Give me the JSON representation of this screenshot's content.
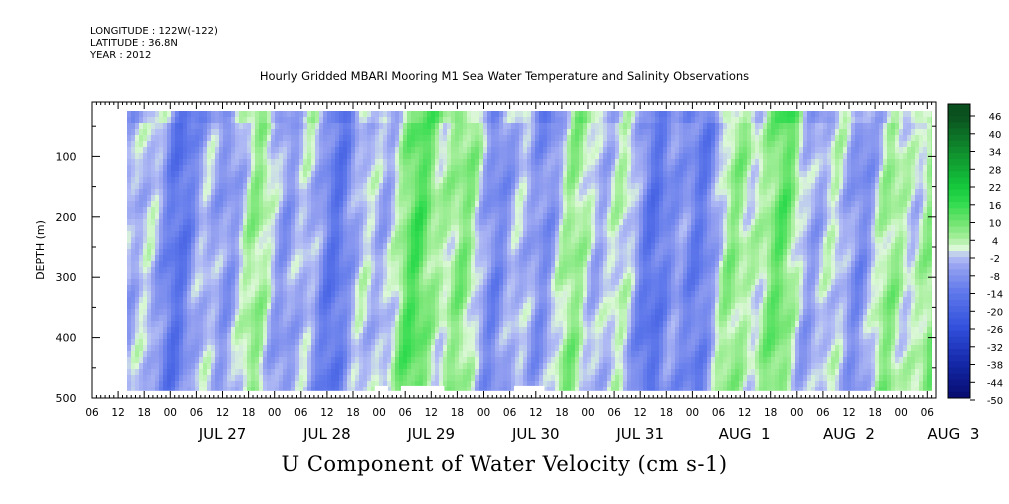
{
  "header": {
    "longitude": "LONGITUDE : 122W(-122)",
    "latitude": "LATITUDE : 36.8N",
    "year": "YEAR : 2012",
    "title": "Hourly Gridded MBARI Mooring M1 Sea Water Temperature and Salinity Observations"
  },
  "footer": {
    "variable": "U Component of Water Velocity (cm s-1)"
  },
  "colors": {
    "negative_strong": "#0a1a8c",
    "negative_mid": "#3355e0",
    "negative_weak": "#9aa8ee",
    "neutral": "#ffffff",
    "positive_weak": "#b4f0a8",
    "positive_mid": "#1ee14a",
    "positive_strong": "#0b5a20"
  },
  "chart_data": {
    "type": "heatmap",
    "title": "Hourly Gridded MBARI Mooring M1 Sea Water Temperature and Salinity Observations",
    "xlabel": "",
    "ylabel": "DEPTH (m)",
    "units": "cm s-1",
    "ylim": [
      500,
      10
    ],
    "y_inverted": true,
    "y_ticks": [
      100,
      200,
      300,
      400,
      500
    ],
    "x_range": [
      "2012-07-26T06:00",
      "2012-08-03T08:00"
    ],
    "data_range": [
      "2012-07-26T14:00",
      "2012-08-03T07:00"
    ],
    "x_hour_labels": [
      "06",
      "12",
      "18",
      "00",
      "06",
      "12",
      "18",
      "00",
      "06",
      "12",
      "18",
      "00",
      "06",
      "12",
      "18",
      "00",
      "06",
      "12",
      "18",
      "00",
      "06",
      "12",
      "18",
      "00",
      "06",
      "12",
      "18",
      "00",
      "06",
      "12",
      "18",
      "00",
      "06"
    ],
    "x_day_labels": [
      {
        "label": "JUL 27",
        "date": "2012-07-27"
      },
      {
        "label": "JUL 28",
        "date": "2012-07-28"
      },
      {
        "label": "JUL 29",
        "date": "2012-07-29"
      },
      {
        "label": "JUL 30",
        "date": "2012-07-30"
      },
      {
        "label": "JUL 31",
        "date": "2012-07-31"
      },
      {
        "label": "AUG  1",
        "date": "2012-08-01"
      },
      {
        "label": "AUG  2",
        "date": "2012-08-02"
      },
      {
        "label": "AUG  3",
        "date": "2012-08-03"
      }
    ],
    "colorbar_levels": [
      46,
      40,
      34,
      28,
      22,
      16,
      10,
      4,
      -2,
      -8,
      -14,
      -20,
      -26,
      -32,
      -38,
      -44,
      -50
    ],
    "colorbar_labels": [
      "46",
      "40",
      "34",
      "28",
      "22",
      "16",
      "10",
      "4",
      "-2",
      "-8",
      "-14",
      "-20",
      "-26",
      "-32",
      "-38",
      "-44",
      "-50"
    ],
    "missing_segments": [
      [
        "2012-07-28T23:00",
        "2012-07-29T02:00"
      ],
      [
        "2012-07-29T05:00",
        "2012-07-29T15:00"
      ],
      [
        "2012-07-30T07:00",
        "2012-07-30T14:00"
      ]
    ],
    "missing_depth_below": 480
  }
}
